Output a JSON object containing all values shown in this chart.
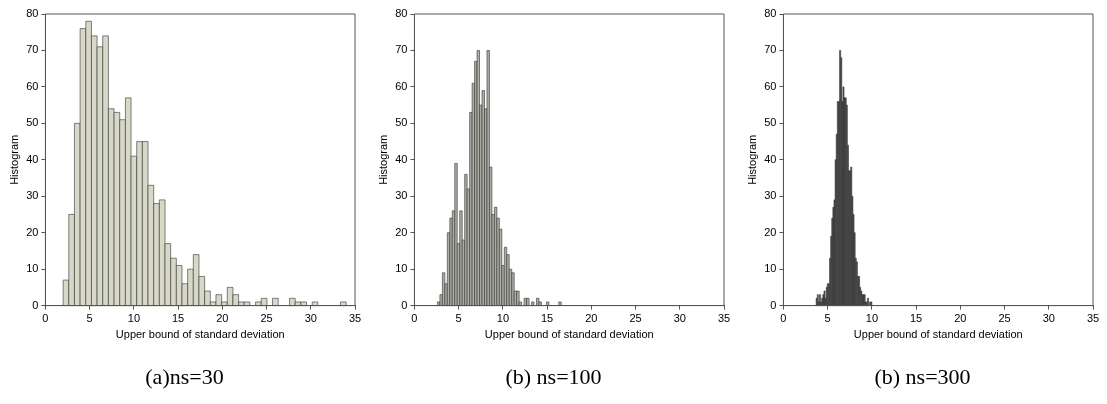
{
  "chart_data": [
    {
      "type": "histogram",
      "xlabel": "Upper bound of standard deviation",
      "ylabel": "Histogram",
      "color": "#d8d8c8",
      "bins": [
        2,
        2.64,
        3.28,
        3.92,
        4.56,
        5.2,
        5.84,
        6.48,
        7.12,
        7.76,
        8.4,
        9.04,
        9.68,
        10.32,
        10.96,
        11.6,
        12.24,
        12.88,
        13.52,
        14.16,
        14.8,
        15.44,
        16.08,
        16.72,
        17.36,
        18,
        18.64,
        19.28,
        19.92,
        20.56,
        21.2,
        21.84,
        22.48,
        23.12,
        23.76,
        24.4,
        25.04,
        25.68,
        26.32,
        26.96,
        27.6,
        28.24,
        28.88,
        29.52,
        30.16,
        30.8,
        31.44,
        32.08,
        32.72,
        33.36,
        34
      ],
      "values": [
        7,
        25,
        50,
        76,
        78,
        74,
        71,
        74,
        54,
        53,
        51,
        57,
        41,
        45,
        45,
        33,
        28,
        29,
        17,
        13,
        11,
        6,
        10,
        14,
        8,
        4,
        1,
        3,
        1,
        5,
        3,
        1,
        1,
        0,
        1,
        2,
        0,
        2,
        0,
        0,
        2,
        1,
        1,
        0,
        1,
        0,
        0,
        0,
        0,
        1
      ],
      "xlim": [
        0,
        35
      ],
      "xticks": [
        0,
        5,
        10,
        15,
        20,
        25,
        30,
        35
      ],
      "ylim": [
        0,
        80
      ],
      "yticks": [
        0,
        10,
        20,
        30,
        40,
        50,
        60,
        70,
        80
      ],
      "grid": false,
      "annotations": [
        "(a)ns=30"
      ]
    },
    {
      "type": "histogram",
      "xlabel": "Upper bound of standard deviation",
      "ylabel": "Histogram",
      "color": "#aeaea6",
      "bins": [
        2.6,
        2.88,
        3.16,
        3.44,
        3.72,
        4,
        4.28,
        4.56,
        4.84,
        5.12,
        5.4,
        5.68,
        5.96,
        6.24,
        6.52,
        6.8,
        7.08,
        7.36,
        7.64,
        7.92,
        8.2,
        8.48,
        8.76,
        9.04,
        9.32,
        9.6,
        9.88,
        10.16,
        10.44,
        10.72,
        11,
        11.28,
        11.56,
        11.84,
        12.12,
        12.4,
        12.68,
        12.96,
        13.24,
        13.52,
        13.8,
        14.08,
        14.36,
        14.64,
        14.92,
        15.2,
        15.48,
        15.76,
        16.04,
        16.32,
        16.6
      ],
      "values": [
        1,
        3,
        9,
        6,
        20,
        24,
        26,
        39,
        17,
        26,
        18,
        36,
        32,
        53,
        61,
        67,
        70,
        55,
        59,
        54,
        70,
        38,
        25,
        27,
        24,
        21,
        11,
        16,
        14,
        10,
        9,
        4,
        4,
        1,
        0,
        2,
        2,
        0,
        1,
        0,
        2,
        1,
        0,
        0,
        1,
        0,
        0,
        0,
        0,
        1
      ],
      "xlim": [
        0,
        35
      ],
      "xticks": [
        0,
        5,
        10,
        15,
        20,
        25,
        30,
        35
      ],
      "ylim": [
        0,
        80
      ],
      "yticks": [
        0,
        10,
        20,
        30,
        40,
        50,
        60,
        70,
        80
      ],
      "grid": false,
      "annotations": [
        "(b) ns=100"
      ]
    },
    {
      "type": "histogram",
      "xlabel": "Upper bound of standard deviation",
      "ylabel": "Histogram",
      "color": "#555555",
      "bins": [
        3.7,
        3.826,
        3.952,
        4.078,
        4.204,
        4.33,
        4.456,
        4.582,
        4.708,
        4.834,
        4.96,
        5.086,
        5.212,
        5.338,
        5.464,
        5.59,
        5.716,
        5.842,
        5.968,
        6.094,
        6.22,
        6.346,
        6.472,
        6.598,
        6.724,
        6.85,
        6.976,
        7.102,
        7.228,
        7.354,
        7.48,
        7.606,
        7.732,
        7.858,
        7.984,
        8.11,
        8.236,
        8.362,
        8.488,
        8.614,
        8.74,
        8.866,
        8.992,
        9.118,
        9.244,
        9.37,
        9.496,
        9.622,
        9.748,
        9.874,
        10
      ],
      "values": [
        2,
        3,
        1,
        3,
        1,
        2,
        3,
        4,
        2,
        5,
        6,
        6,
        13,
        19,
        24,
        27,
        29,
        40,
        47,
        56,
        56,
        70,
        68,
        56,
        60,
        57,
        57,
        55,
        44,
        37,
        37,
        38,
        30,
        25,
        20,
        13,
        12,
        8,
        8,
        5,
        4,
        3,
        3,
        3,
        1,
        1,
        2,
        0,
        1,
        1
      ],
      "xlim": [
        0,
        35
      ],
      "xticks": [
        0,
        5,
        10,
        15,
        20,
        25,
        30,
        35
      ],
      "ylim": [
        0,
        80
      ],
      "yticks": [
        0,
        10,
        20,
        30,
        40,
        50,
        60,
        70,
        80
      ],
      "grid": false,
      "annotations": [
        "(b) ns=300"
      ]
    }
  ]
}
